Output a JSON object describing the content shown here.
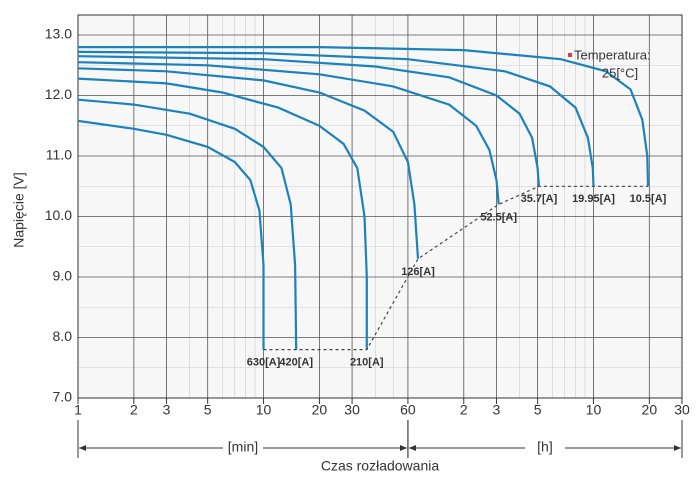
{
  "chart_data": {
    "type": "line",
    "log_x": true,
    "xlabel": "Czas rozładowania",
    "ylabel": "Napięcie [V]",
    "xlim": [
      1,
      1800
    ],
    "ylim": [
      7,
      13
    ],
    "xticks": [
      1,
      2,
      3,
      5,
      10,
      20,
      30,
      60,
      {
        "value": 120,
        "label": "2"
      },
      {
        "value": 180,
        "label": "3"
      },
      {
        "value": 300,
        "label": "5"
      },
      {
        "value": 600,
        "label": "10"
      },
      {
        "value": 1200,
        "label": "20"
      },
      {
        "value": 1800,
        "label": "30"
      }
    ],
    "x_minor_ticks": [
      4,
      6,
      7,
      8,
      9,
      40,
      50,
      240,
      360,
      420,
      480,
      540
    ],
    "yticks": [
      {
        "value": 7,
        "label": "7.0"
      },
      {
        "value": 8,
        "label": "8.0"
      },
      {
        "value": 9,
        "label": "9.0"
      },
      {
        "value": 10,
        "label": "10.0"
      },
      {
        "value": 11,
        "label": "11.0"
      },
      {
        "value": 12,
        "label": "12.0"
      },
      {
        "value": 13,
        "label": "13.0"
      }
    ],
    "y_minor_ticks": [
      7.5,
      8.5,
      9.5,
      10.5,
      11.5,
      12.5
    ],
    "grid": true,
    "color": "#1b82bd",
    "annotations": [
      "Temperatura:",
      "25[°C]"
    ],
    "annotation_marker_color": "#e03a3a",
    "unit_ranges": [
      {
        "text": "[min]",
        "from": 1,
        "to": 60
      },
      {
        "text": "[h]",
        "from": 60,
        "to": 1800
      }
    ],
    "series": [
      {
        "name": "630[A]",
        "x": [
          1,
          2,
          3,
          5,
          7,
          8.5,
          9.5,
          10,
          10
        ],
        "values": [
          11.58,
          11.45,
          11.35,
          11.15,
          10.9,
          10.6,
          10.1,
          9.2,
          7.8
        ]
      },
      {
        "name": "420[A]",
        "x": [
          1,
          2,
          4,
          7,
          10,
          12.5,
          14,
          14.8,
          15
        ],
        "values": [
          11.93,
          11.85,
          11.7,
          11.45,
          11.15,
          10.8,
          10.2,
          9.2,
          7.8
        ]
      },
      {
        "name": "210[A]",
        "x": [
          1,
          3,
          6,
          12,
          20,
          27,
          32,
          35,
          36,
          36
        ],
        "values": [
          12.28,
          12.2,
          12.05,
          11.8,
          11.5,
          11.2,
          10.8,
          10.0,
          9.0,
          7.8
        ]
      },
      {
        "name": "126[A]",
        "x": [
          1,
          3,
          10,
          20,
          35,
          50,
          60,
          65,
          68
        ],
        "values": [
          12.45,
          12.4,
          12.25,
          12.05,
          11.75,
          11.4,
          10.9,
          10.2,
          9.3
        ]
      },
      {
        "name": "52.5[A]",
        "x": [
          1,
          5,
          20,
          50,
          100,
          140,
          165,
          180,
          185
        ],
        "values": [
          12.55,
          12.5,
          12.35,
          12.15,
          11.85,
          11.5,
          11.1,
          10.6,
          10.2
        ]
      },
      {
        "name": "35.7[A]",
        "x": [
          1,
          10,
          40,
          100,
          180,
          240,
          280,
          300,
          305
        ],
        "values": [
          12.65,
          12.6,
          12.48,
          12.3,
          12.0,
          11.7,
          11.3,
          10.8,
          10.5
        ]
      },
      {
        "name": "19.95[A]",
        "x": [
          1,
          10,
          60,
          200,
          350,
          480,
          560,
          595,
          600
        ],
        "values": [
          12.72,
          12.7,
          12.6,
          12.4,
          12.15,
          11.8,
          11.3,
          10.8,
          10.5
        ]
      },
      {
        "name": "10.5[A]",
        "x": [
          1,
          20,
          120,
          400,
          700,
          950,
          1100,
          1170,
          1180
        ],
        "values": [
          12.8,
          12.8,
          12.75,
          12.6,
          12.4,
          12.1,
          11.6,
          11.0,
          10.5
        ]
      }
    ]
  }
}
